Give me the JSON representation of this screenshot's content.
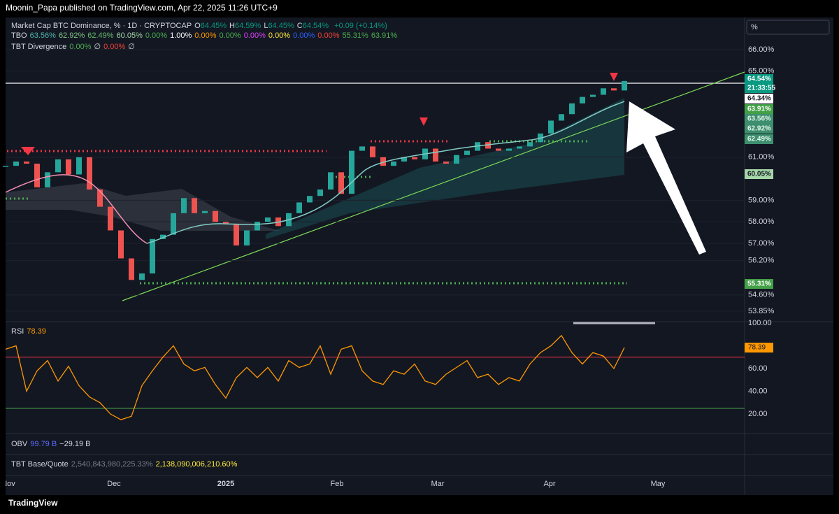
{
  "header": {
    "publisher": "Moonin_Papa published on TradingView.com, Apr 22, 2025 11:26 UTC+9"
  },
  "legend": {
    "symbol": "Market Cap BTC Dominance, % · 1D · CRYPTOCAP",
    "ohlc": [
      {
        "key": "O",
        "value": "64.45%"
      },
      {
        "key": "H",
        "value": "64.59%"
      },
      {
        "key": "L",
        "value": "64.45%"
      },
      {
        "key": "C",
        "value": "64.54%"
      }
    ],
    "change": "+0.09 (+0.14%)",
    "tbo": {
      "name": "TBO",
      "items": [
        {
          "text": "63.56%",
          "color": "#4db6ac"
        },
        {
          "text": "62.92%",
          "color": "#81c784"
        },
        {
          "text": "62.49%",
          "color": "#66bb6a"
        },
        {
          "text": "60.05%",
          "color": "#a5d6a7"
        },
        {
          "text": "0.00%",
          "color": "#4caf50"
        },
        {
          "text": "1.00%",
          "color": "#ffffff"
        },
        {
          "text": "0.00%",
          "color": "#ff9800"
        },
        {
          "text": "0.00%",
          "color": "#4caf50"
        },
        {
          "text": "0.00%",
          "color": "#e040fb"
        },
        {
          "text": "0.00%",
          "color": "#ffeb3b"
        },
        {
          "text": "0.00%",
          "color": "#2962ff"
        },
        {
          "text": "0.00%",
          "color": "#f44336"
        },
        {
          "text": "55.31%",
          "color": "#4caf50"
        },
        {
          "text": "63.91%",
          "color": "#4caf50"
        }
      ]
    },
    "divergence": {
      "name": "TBT Divergence",
      "items": [
        {
          "text": "0.00%",
          "color": "#4caf50"
        },
        {
          "text": "∅",
          "color": "#d1d4dc"
        },
        {
          "text": "0.00%",
          "color": "#f44336"
        },
        {
          "text": "∅",
          "color": "#d1d4dc"
        }
      ]
    }
  },
  "scale_mode": "%",
  "price": {
    "closes": [
      60.6,
      60.8,
      60.7,
      59.6,
      60.3,
      60.9,
      60.2,
      61.0,
      59.5,
      58.7,
      57.6,
      56.3,
      55.3,
      55.6,
      57.2,
      57.4,
      58.4,
      59.1,
      58.4,
      58.5,
      58.0,
      57.9,
      56.9,
      57.6,
      58.0,
      58.2,
      57.8,
      58.4,
      58.9,
      59.2,
      59.5,
      60.3,
      59.3,
      61.3,
      61.5,
      61.0,
      60.6,
      60.8,
      61.0,
      60.9,
      61.4,
      60.8,
      60.7,
      61.1,
      61.3,
      61.7,
      61.4,
      61.3,
      61.4,
      61.5,
      61.7,
      62.1,
      62.7,
      63.0,
      63.5,
      63.8,
      63.9,
      64.2,
      64.1,
      64.54
    ],
    "ylim": [
      53.36,
      67.49
    ],
    "yticks": [
      {
        "value": 66,
        "label": "66.00%"
      },
      {
        "value": 65,
        "label": "65.00%"
      },
      {
        "value": 61,
        "label": "61.00%"
      },
      {
        "value": 59,
        "label": "59.00%"
      },
      {
        "value": 58,
        "label": "58.00%"
      },
      {
        "value": 57,
        "label": "57.00%"
      },
      {
        "value": 56.2,
        "label": "56.20%"
      },
      {
        "value": 54.6,
        "label": "54.60%"
      },
      {
        "value": 53.85,
        "label": "53.85%"
      }
    ],
    "up_color": "#26a69a",
    "down_color": "#ef5350"
  },
  "price_tags": [
    {
      "text": "64.54%",
      "bg": "#089981",
      "fg": "#ffffff"
    },
    {
      "text": "21:33:55",
      "bg": "#089981",
      "fg": "#ffffff"
    },
    {
      "text": "64.34%",
      "bg": "#ffffff",
      "fg": "#131722"
    },
    {
      "text": "63.91%",
      "bg": "#43a047",
      "fg": "#ffffff"
    },
    {
      "text": "63.56%",
      "bg": "#3d8f6e",
      "fg": "#e0f2e9"
    },
    {
      "text": "62.92%",
      "bg": "#3d8f6e",
      "fg": "#e0f2e9"
    },
    {
      "text": "62.49%",
      "bg": "#3d8f6e",
      "fg": "#e0f2e9"
    },
    {
      "text": "60.05%",
      "bg": "#a5d6a7",
      "fg": "#131722"
    },
    {
      "text": "55.31%",
      "bg": "#43a047",
      "fg": "#ffffff"
    }
  ],
  "time_axis": [
    "Nov",
    "Dec",
    "2025",
    "Feb",
    "Mar",
    "Apr",
    "May"
  ],
  "rsi": {
    "name": "RSI",
    "value": "78.39",
    "values": [
      77,
      80,
      40,
      58,
      67,
      49,
      62,
      45,
      35,
      30,
      20,
      15,
      18,
      45,
      58,
      70,
      80,
      64,
      58,
      61,
      46,
      34,
      52,
      61,
      52,
      61,
      49,
      67,
      61,
      64,
      80,
      55,
      77,
      80,
      58,
      49,
      46,
      58,
      55,
      64,
      49,
      46,
      55,
      61,
      67,
      52,
      55,
      46,
      52,
      49,
      64,
      74,
      80,
      89,
      74,
      64,
      74,
      71,
      60,
      78.39
    ],
    "ylim": [
      2.8,
      101.2
    ],
    "yticks": [
      {
        "value": 100,
        "label": "100.00"
      },
      {
        "value": 60,
        "label": "60.00"
      },
      {
        "value": 40,
        "label": "40.00"
      },
      {
        "value": 20,
        "label": "20.00"
      }
    ],
    "levels": [
      {
        "value": 70,
        "color": "#f23645"
      },
      {
        "value": 25,
        "color": "#4caf50"
      }
    ],
    "color": "#ff9800"
  },
  "obv": {
    "name": "OBV",
    "items": [
      {
        "text": "99.79 B",
        "color": "#5b6cff"
      },
      {
        "text": "−29.19 B",
        "color": "#d1d4dc"
      }
    ]
  },
  "base_quote": {
    "name": "TBT Base/Quote",
    "items": [
      {
        "text": "2,540,843,980,225.33%",
        "color": "#787b86"
      },
      {
        "text": "2,138,090,006,210.60%",
        "color": "#ffeb3b"
      }
    ]
  },
  "brand": "TradingView"
}
